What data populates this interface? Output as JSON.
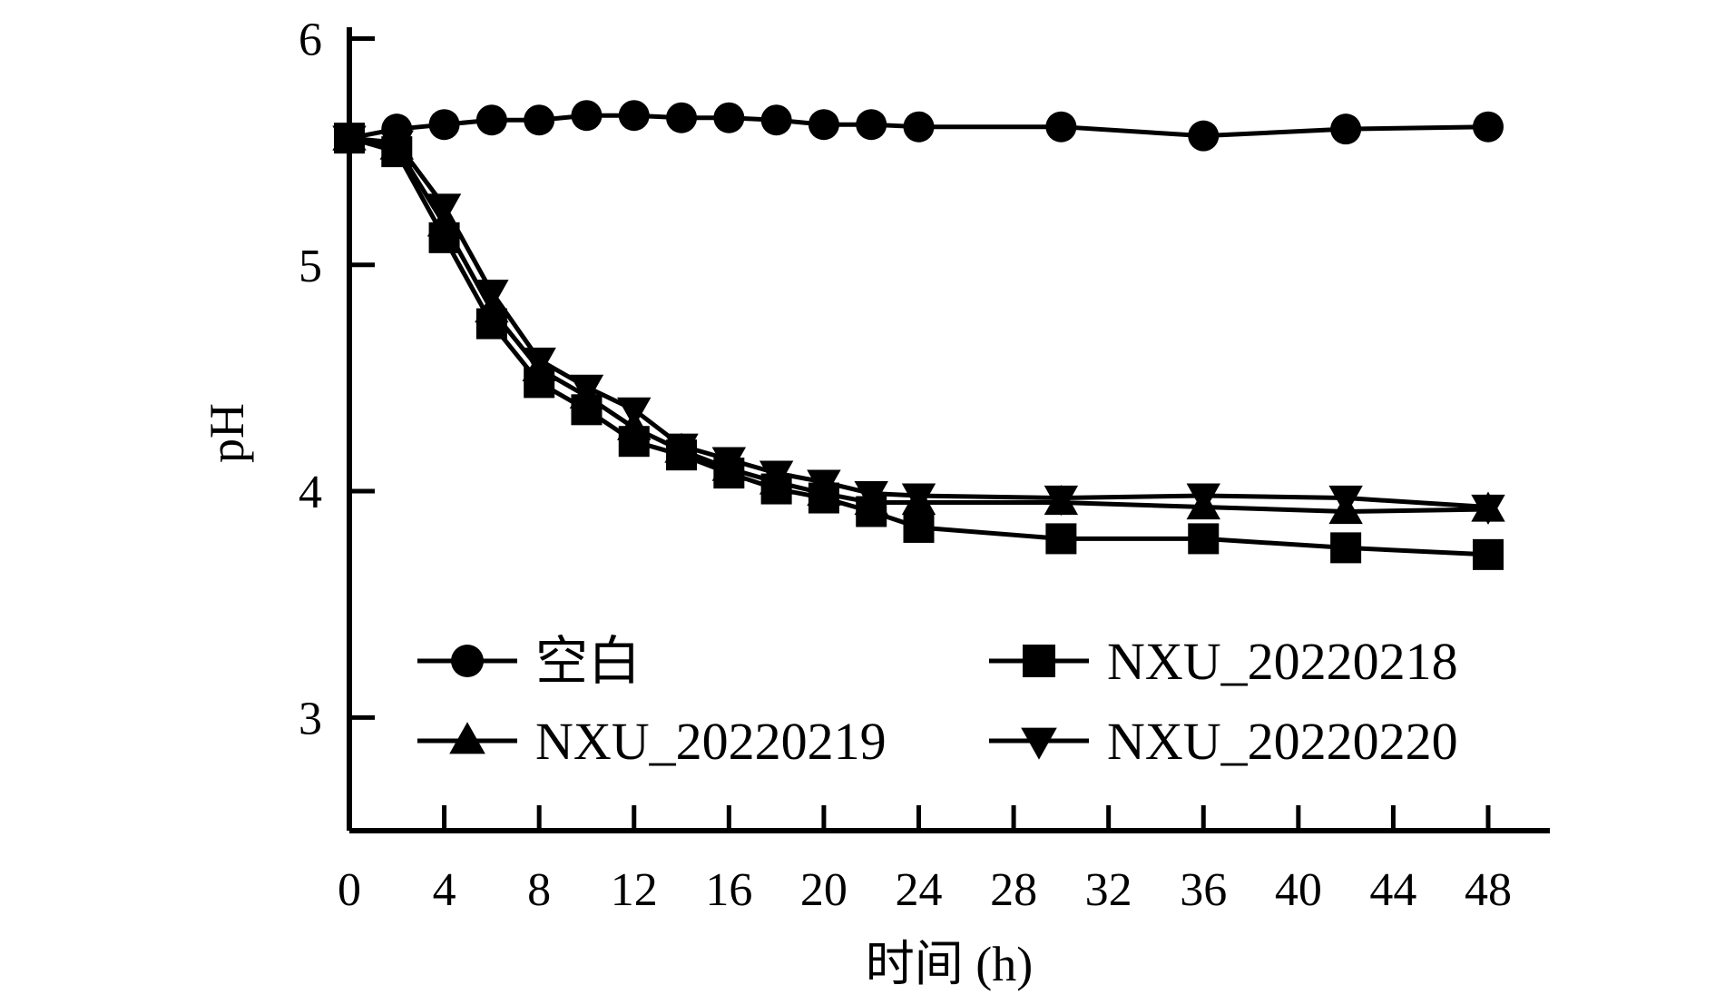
{
  "chart_data": {
    "type": "line",
    "title": "",
    "xlabel": "时间 (h)",
    "ylabel": "pH",
    "xlim": [
      0,
      50
    ],
    "ylim": [
      2.5,
      6.05
    ],
    "x_ticks": [
      0,
      4,
      8,
      12,
      16,
      20,
      24,
      28,
      32,
      36,
      40,
      44,
      48
    ],
    "y_ticks": [
      3,
      4,
      5,
      6
    ],
    "grid": false,
    "legend_position": "bottom, inside, two columns",
    "series": [
      {
        "name": "空白",
        "marker": "circle",
        "color": "#000000",
        "x": [
          0,
          2,
          4,
          6,
          8,
          10,
          12,
          14,
          16,
          18,
          20,
          22,
          24,
          30,
          36,
          42,
          48
        ],
        "y": [
          5.56,
          5.6,
          5.62,
          5.64,
          5.64,
          5.66,
          5.66,
          5.65,
          5.65,
          5.64,
          5.62,
          5.62,
          5.61,
          5.61,
          5.57,
          5.6,
          5.61
        ]
      },
      {
        "name": "NXU_20220218",
        "marker": "square",
        "color": "#000000",
        "x": [
          0,
          2,
          4,
          6,
          8,
          10,
          12,
          14,
          16,
          18,
          20,
          22,
          24,
          30,
          36,
          42,
          48
        ],
        "y": [
          5.56,
          5.5,
          5.12,
          4.74,
          4.48,
          4.36,
          4.22,
          4.16,
          4.08,
          4.01,
          3.97,
          3.91,
          3.84,
          3.79,
          3.79,
          3.75,
          3.72
        ]
      },
      {
        "name": "NXU_20220219",
        "marker": "triangle-up",
        "color": "#000000",
        "x": [
          0,
          2,
          4,
          6,
          8,
          10,
          12,
          14,
          16,
          18,
          20,
          22,
          24,
          30,
          36,
          42,
          48
        ],
        "y": [
          5.56,
          5.52,
          5.18,
          4.8,
          4.54,
          4.42,
          4.28,
          4.18,
          4.1,
          4.04,
          3.99,
          3.95,
          3.95,
          3.95,
          3.93,
          3.91,
          3.92
        ]
      },
      {
        "name": "NXU_20220220",
        "marker": "triangle-down",
        "color": "#000000",
        "x": [
          0,
          2,
          4,
          6,
          8,
          10,
          12,
          14,
          16,
          18,
          20,
          22,
          24,
          30,
          36,
          42,
          48
        ],
        "y": [
          5.56,
          5.54,
          5.26,
          4.88,
          4.58,
          4.46,
          4.36,
          4.2,
          4.14,
          4.08,
          4.04,
          3.99,
          3.98,
          3.97,
          3.98,
          3.97,
          3.93
        ]
      }
    ]
  }
}
